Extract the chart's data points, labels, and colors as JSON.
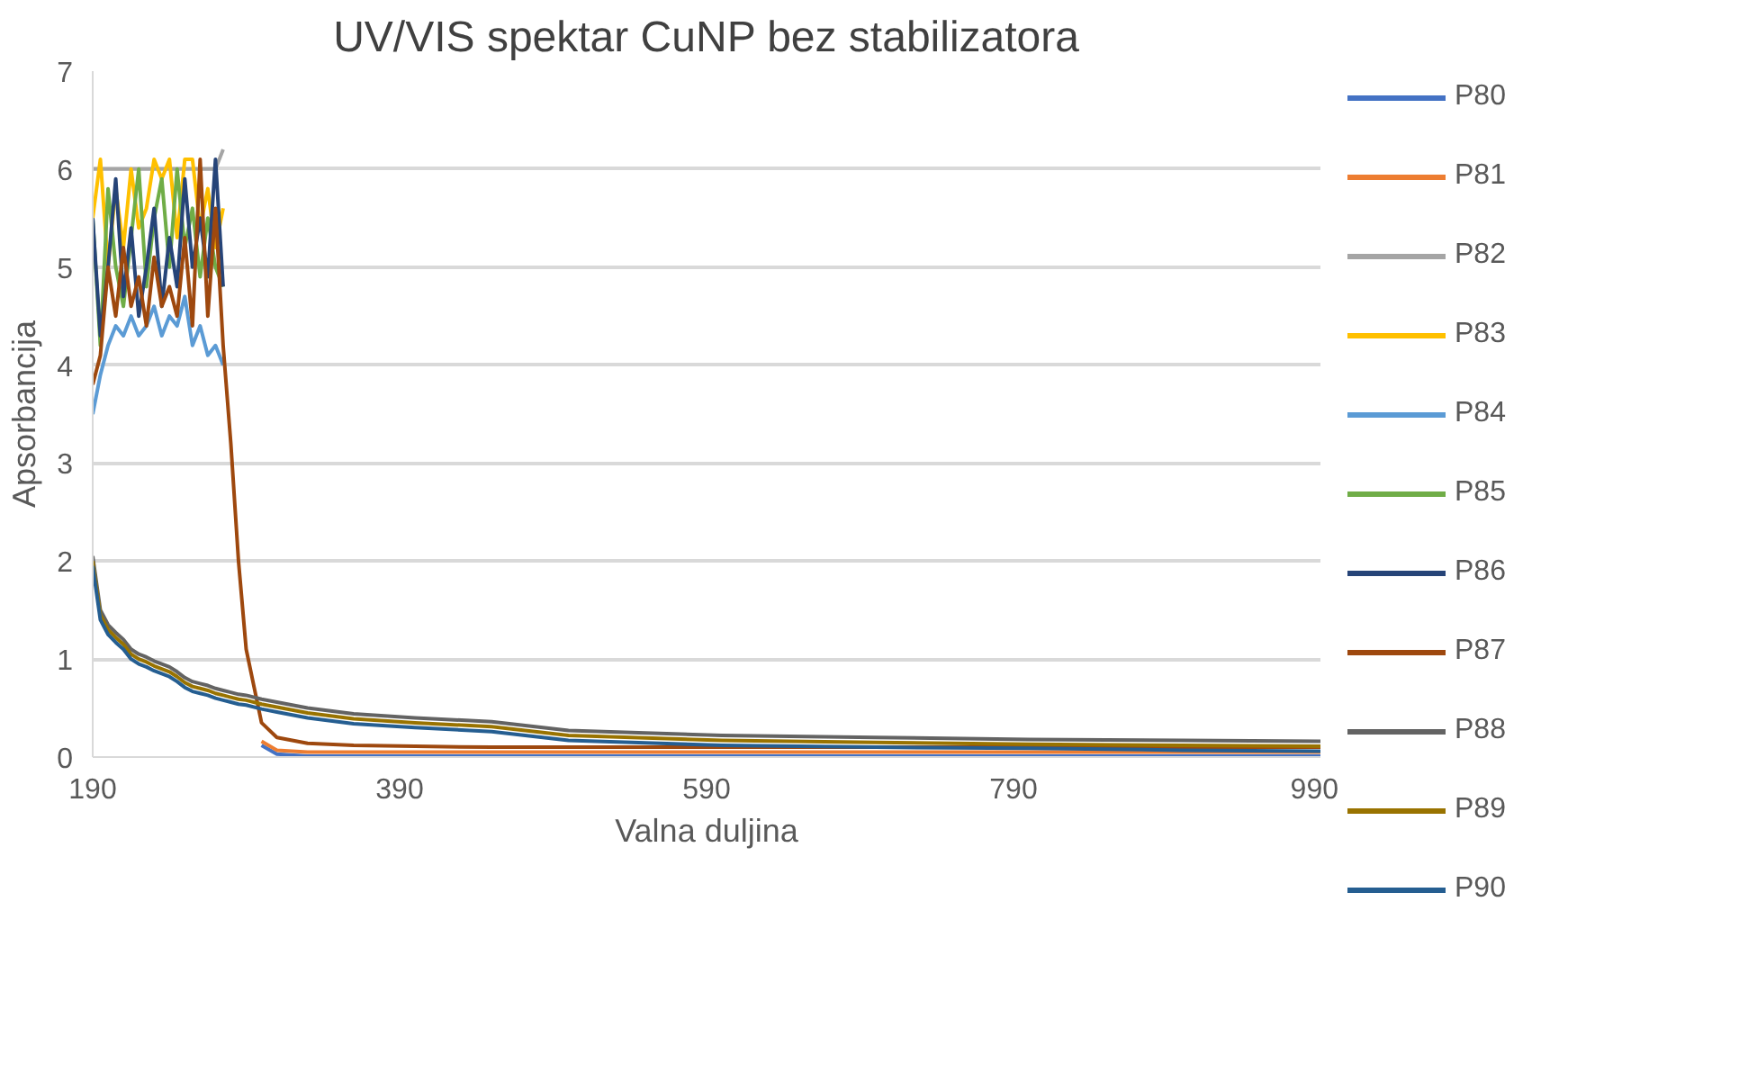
{
  "chart_data": {
    "type": "line",
    "title": "UV/VIS spektar CuNP bez stabilizatora",
    "xlabel": "Valna duljina",
    "ylabel": "Apsorbancija",
    "x": [
      190,
      195,
      200,
      205,
      210,
      215,
      220,
      225,
      230,
      235,
      240,
      245,
      250,
      255,
      260,
      265,
      270,
      275,
      280,
      285,
      290,
      300,
      310,
      330,
      360,
      400,
      450,
      500,
      600,
      700,
      800,
      900,
      990
    ],
    "xlim": [
      190,
      990
    ],
    "xticks": [
      190,
      390,
      590,
      790,
      990
    ],
    "ylim": [
      0,
      7
    ],
    "yticks": [
      0,
      1,
      2,
      3,
      4,
      5,
      6,
      7
    ],
    "grid": "y",
    "legend": "right",
    "series": [
      {
        "name": "P80",
        "color": "#4472c4",
        "values": [
          null,
          null,
          null,
          null,
          null,
          null,
          null,
          null,
          null,
          null,
          null,
          null,
          null,
          null,
          null,
          null,
          null,
          null,
          null,
          null,
          null,
          0.12,
          0.03,
          0.01,
          0.01,
          0.01,
          0.01,
          0.01,
          0.01,
          0.01,
          0.01,
          0.01,
          0.01
        ]
      },
      {
        "name": "P81",
        "color": "#ed7d31",
        "values": [
          null,
          null,
          null,
          null,
          null,
          null,
          null,
          null,
          null,
          null,
          null,
          null,
          null,
          null,
          null,
          null,
          null,
          null,
          null,
          null,
          null,
          0.16,
          0.07,
          0.05,
          0.05,
          0.05,
          0.05,
          0.05,
          0.05,
          0.05,
          0.05,
          0.05,
          0.05
        ]
      },
      {
        "name": "P82",
        "color": "#a5a5a5",
        "values": [
          6.0,
          6.0,
          6.0,
          6.0,
          6.0,
          6.0,
          6.0,
          6.0,
          6.0,
          6.0,
          6.0,
          6.0,
          6.0,
          6.0,
          6.0,
          6.0,
          6.0,
          6.2,
          null,
          null,
          null,
          null,
          null,
          null,
          null,
          null,
          null,
          null,
          null,
          null,
          null,
          null,
          null
        ]
      },
      {
        "name": "P83",
        "color": "#ffc000",
        "values": [
          5.5,
          6.1,
          5.0,
          5.8,
          5.2,
          6.0,
          5.4,
          5.6,
          6.1,
          5.9,
          6.1,
          5.3,
          6.1,
          6.1,
          5.4,
          5.8,
          5.2,
          5.6,
          null,
          null,
          null,
          null,
          null,
          null,
          null,
          null,
          null,
          null,
          null,
          null,
          null,
          null,
          null
        ]
      },
      {
        "name": "P84",
        "color": "#5b9bd5",
        "values": [
          3.5,
          3.9,
          4.2,
          4.4,
          4.3,
          4.5,
          4.3,
          4.4,
          4.6,
          4.3,
          4.5,
          4.4,
          4.7,
          4.2,
          4.4,
          4.1,
          4.2,
          4.0,
          null,
          null,
          null,
          null,
          null,
          null,
          null,
          null,
          null,
          null,
          null,
          null,
          null,
          null,
          null
        ]
      },
      {
        "name": "P85",
        "color": "#70ad47",
        "values": [
          5.5,
          4.2,
          5.8,
          5.0,
          4.6,
          5.3,
          6.0,
          4.8,
          5.5,
          5.9,
          5.0,
          6.0,
          5.2,
          5.6,
          4.9,
          5.5,
          5.0,
          4.8,
          null,
          null,
          null,
          null,
          null,
          null,
          null,
          null,
          null,
          null,
          null,
          null,
          null,
          null,
          null
        ]
      },
      {
        "name": "P86",
        "color": "#264478",
        "values": [
          5.5,
          4.3,
          5.0,
          5.9,
          4.7,
          5.4,
          4.5,
          5.0,
          5.6,
          4.6,
          5.3,
          4.8,
          5.9,
          5.0,
          5.5,
          4.9,
          6.1,
          4.8,
          null,
          null,
          null,
          null,
          null,
          null,
          null,
          null,
          null,
          null,
          null,
          null,
          null,
          null,
          null
        ]
      },
      {
        "name": "P87",
        "color": "#9e480e",
        "values": [
          3.8,
          4.1,
          5.0,
          4.5,
          5.2,
          4.6,
          4.9,
          4.4,
          5.1,
          4.6,
          4.8,
          4.5,
          5.3,
          4.4,
          6.1,
          4.5,
          5.6,
          4.2,
          3.2,
          2.0,
          1.1,
          0.35,
          0.2,
          0.14,
          0.12,
          0.11,
          0.1,
          0.1,
          0.1,
          0.1,
          0.1,
          0.1,
          0.1
        ]
      },
      {
        "name": "P88",
        "color": "#636363",
        "values": [
          2.05,
          1.5,
          1.35,
          1.27,
          1.2,
          1.1,
          1.05,
          1.02,
          0.98,
          0.95,
          0.92,
          0.87,
          0.81,
          0.77,
          0.75,
          0.73,
          0.7,
          0.68,
          0.66,
          0.64,
          0.63,
          0.59,
          0.56,
          0.5,
          0.44,
          0.4,
          0.36,
          0.27,
          0.22,
          0.2,
          0.18,
          0.17,
          0.16
        ]
      },
      {
        "name": "P89",
        "color": "#997300",
        "values": [
          2.0,
          1.45,
          1.3,
          1.22,
          1.15,
          1.05,
          1.0,
          0.97,
          0.93,
          0.9,
          0.87,
          0.82,
          0.76,
          0.72,
          0.7,
          0.68,
          0.65,
          0.63,
          0.61,
          0.59,
          0.58,
          0.54,
          0.51,
          0.45,
          0.39,
          0.35,
          0.31,
          0.22,
          0.17,
          0.15,
          0.13,
          0.12,
          0.11
        ]
      },
      {
        "name": "P90",
        "color": "#255e91",
        "values": [
          1.95,
          1.4,
          1.25,
          1.17,
          1.1,
          1.0,
          0.95,
          0.92,
          0.88,
          0.85,
          0.82,
          0.77,
          0.71,
          0.67,
          0.65,
          0.63,
          0.6,
          0.58,
          0.56,
          0.54,
          0.53,
          0.49,
          0.46,
          0.4,
          0.34,
          0.3,
          0.26,
          0.17,
          0.12,
          0.1,
          0.09,
          0.07,
          0.06
        ]
      }
    ]
  }
}
